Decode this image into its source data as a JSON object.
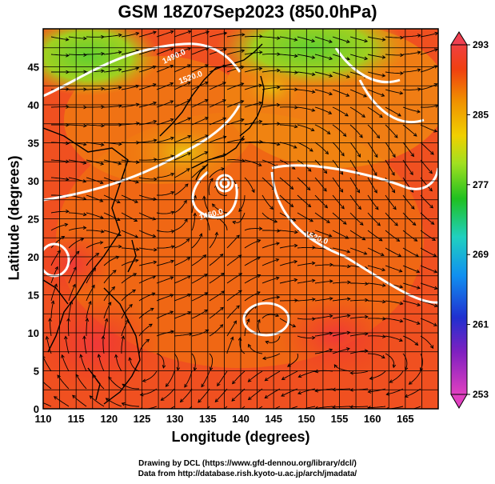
{
  "title": "GSM 18Z07Sep2023 (850.0hPa)",
  "xlabel": "Longitude (degrees)",
  "ylabel": "Latitude  (degrees)",
  "credits": [
    "Drawing by DCL (https://www.gfd-dennou.org/library/dcl/)",
    "Data from http://database.rish.kyoto-u.ac.jp/arch/jmadata/"
  ],
  "map": {
    "lon_range": [
      110,
      170
    ],
    "lat_range": [
      0,
      50
    ],
    "lon_ticks": [
      "110",
      "115",
      "120",
      "125",
      "130",
      "135",
      "140",
      "145",
      "150",
      "155",
      "160",
      "165"
    ],
    "lat_ticks": [
      "0",
      "5",
      "10",
      "15",
      "20",
      "25",
      "30",
      "35",
      "40",
      "45"
    ],
    "grid": true,
    "field": "temperature shading with wind streamlines",
    "contour_labels": [
      "1490.0",
      "1520.0",
      "1460.0",
      "1520.0"
    ]
  },
  "colorbar": {
    "ticks": [
      "253",
      "261",
      "269",
      "277",
      "285",
      "293"
    ],
    "colors": [
      "#e060e0",
      "#6030c0",
      "#2050d8",
      "#20a8f0",
      "#30d8b0",
      "#40d040",
      "#a0e020",
      "#f0d000",
      "#f09000",
      "#f04010",
      "#f04040"
    ]
  }
}
